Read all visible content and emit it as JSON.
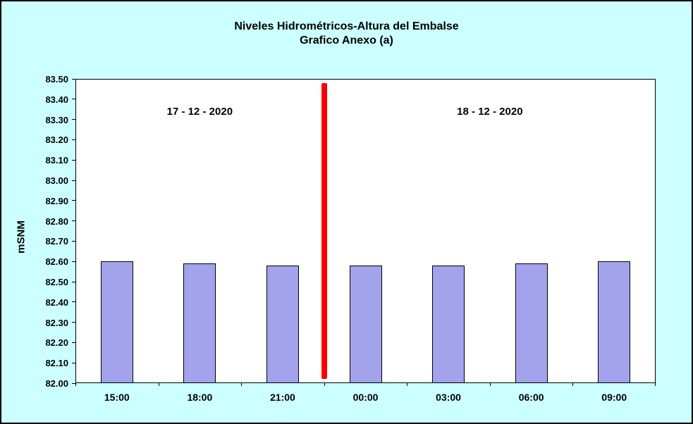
{
  "title": {
    "line1": "Niveles Hidrométricos-Altura del Embalse",
    "line2": "Grafico Anexo (a)"
  },
  "chart_data": {
    "type": "bar",
    "categories": [
      "15:00",
      "18:00",
      "21:00",
      "00:00",
      "03:00",
      "06:00",
      "09:00"
    ],
    "values": [
      82.6,
      82.59,
      82.58,
      82.58,
      82.58,
      82.59,
      82.6
    ],
    "title": "Niveles Hidrométricos-Altura del Embalse Grafico Anexo (a)",
    "xlabel": "",
    "ylabel": "mSNM",
    "ylim": [
      82.0,
      83.5
    ],
    "ytick_step": 0.1,
    "grid": "off",
    "legend": "none",
    "bar_color": "#A3A3EC",
    "bar_border_color": "#000000",
    "background_color": "#CCFFFF",
    "plot_background_color": "#FFFFFF",
    "divider": {
      "color": "#FF0000",
      "after_category_index": 2,
      "from_value": 83.48,
      "to_value": 82.02,
      "label_left": "17 - 12 - 2020",
      "label_right": "18 - 12 - 2020"
    }
  }
}
